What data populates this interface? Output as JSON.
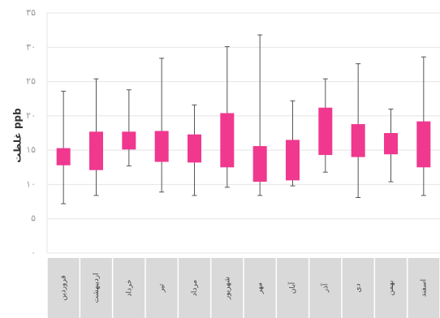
{
  "chart_data": {
    "type": "boxplot",
    "title": "",
    "ylabel": "غلظت ppb",
    "ylim": [
      0,
      35
    ],
    "ytick_labels": [
      "۰",
      "۵",
      "۱۰",
      "۱۵",
      "۲۰",
      "۲۵",
      "۳۰",
      "۳۵"
    ],
    "yticks": [
      0,
      5,
      10,
      15,
      20,
      25,
      30,
      35
    ],
    "grid": true,
    "box_color": "#f0388f",
    "categories": [
      "فروردین",
      "اردیبهشت",
      "خرداد",
      "تیر",
      "مرداد",
      "شهریور",
      "مهر",
      "آبان",
      "آذر",
      "دی",
      "بهمن",
      "اسفند"
    ],
    "series": [
      {
        "stats": [
          {
            "min": 7.2,
            "q1": 12.8,
            "q3": 15.3,
            "max": 23.6
          },
          {
            "min": 8.4,
            "q1": 12.1,
            "q3": 17.7,
            "max": 25.4
          },
          {
            "min": 12.7,
            "q1": 15.1,
            "q3": 17.7,
            "max": 23.8
          },
          {
            "min": 8.9,
            "q1": 13.3,
            "q3": 17.8,
            "max": 28.4
          },
          {
            "min": 8.4,
            "q1": 13.2,
            "q3": 17.3,
            "max": 21.6
          },
          {
            "min": 9.6,
            "q1": 12.5,
            "q3": 20.4,
            "max": 30.1
          },
          {
            "min": 8.4,
            "q1": 10.4,
            "q3": 15.6,
            "max": 31.8
          },
          {
            "min": 9.8,
            "q1": 10.6,
            "q3": 16.5,
            "max": 22.2
          },
          {
            "min": 11.8,
            "q1": 14.3,
            "q3": 21.2,
            "max": 25.4
          },
          {
            "min": 8.1,
            "q1": 14.0,
            "q3": 18.8,
            "max": 27.6
          },
          {
            "min": 10.4,
            "q1": 14.4,
            "q3": 17.5,
            "max": 21.0
          },
          {
            "min": 8.4,
            "q1": 12.5,
            "q3": 19.2,
            "max": 28.6
          }
        ]
      }
    ]
  }
}
